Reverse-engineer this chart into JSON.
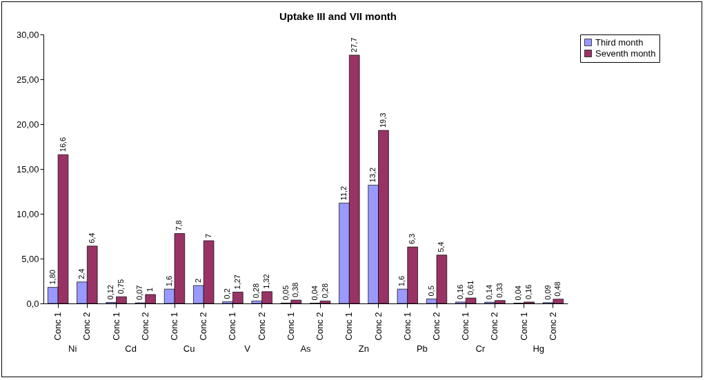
{
  "chart_data": {
    "type": "bar",
    "title": "Uptake III and VII month",
    "categories": [
      "Conc 1",
      "Conc 2",
      "Conc 1",
      "Conc 2",
      "Conc 1",
      "Conc 2",
      "Conc 1",
      "Conc 2",
      "Conc 1",
      "Conc 2",
      "Conc 1",
      "Conc 2",
      "Conc 1",
      "Conc 2",
      "Conc 1",
      "Conc 2",
      "Conc 1",
      "Conc 2"
    ],
    "annotations": [
      "Ni",
      "Cd",
      "Cu",
      "V",
      "As",
      "Zn",
      "Pb",
      "Cr",
      "Hg"
    ],
    "series": [
      {
        "name": "Third month",
        "color": "#9999ff",
        "values": [
          1.8,
          2.4,
          0.12,
          0.07,
          1.6,
          2,
          0.2,
          0.28,
          0.05,
          0.04,
          11.2,
          13.2,
          1.6,
          0.5,
          0.16,
          0.14,
          0.04,
          0.09
        ],
        "value_labels": [
          "1,80",
          "2,4",
          "0,12",
          "0,07",
          "1,6",
          "2",
          "0,2",
          "0,28",
          "0,05",
          "0,04",
          "11,2",
          "13,2",
          "1,6",
          "0,5",
          "0,16",
          "0,14",
          "0,04",
          "0,09"
        ]
      },
      {
        "name": "Seventh month",
        "color": "#993366",
        "values": [
          16.6,
          6.4,
          0.75,
          1,
          7.8,
          7,
          1.27,
          1.32,
          0.38,
          0.28,
          27.7,
          19.3,
          6.3,
          5.4,
          0.61,
          0.33,
          0.16,
          0.48
        ],
        "value_labels": [
          "16,6",
          "6,4",
          "0,75",
          "1",
          "7,8",
          "7",
          "1,27",
          "1,32",
          "0,38",
          "0,28",
          "27,7",
          "19,3",
          "6,3",
          "5,4",
          "0,61",
          "0,33",
          "0,16",
          "0,48"
        ]
      }
    ],
    "ylim": [
      0,
      30
    ],
    "yticks": [
      {
        "value": 0,
        "label": "0,0"
      },
      {
        "value": 5,
        "label": "5,00"
      },
      {
        "value": 10,
        "label": "10,00"
      },
      {
        "value": 15,
        "label": "15,00"
      },
      {
        "value": 20,
        "label": "20,00"
      },
      {
        "value": 25,
        "label": "25,00"
      },
      {
        "value": 30,
        "label": "30,00"
      }
    ],
    "legend": "right",
    "grid": false
  }
}
